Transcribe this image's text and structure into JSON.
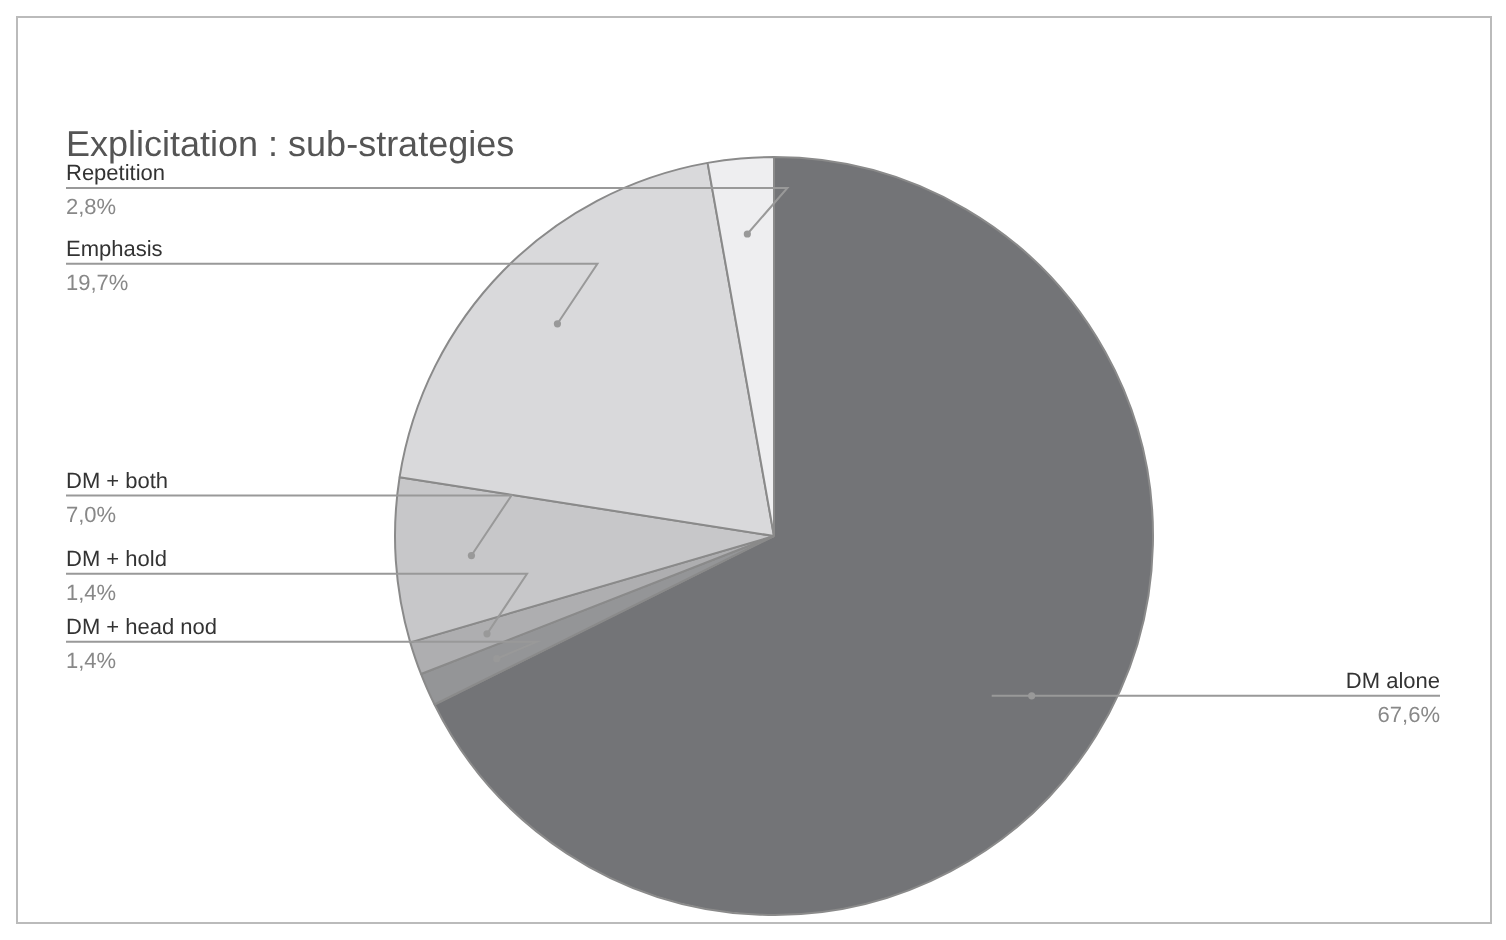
{
  "chart_data": {
    "type": "pie",
    "title": "Explicitation : sub-strategies",
    "categories": [
      "DM alone",
      "DM + head nod",
      "DM + hold",
      "DM + both",
      "Emphasis",
      "Repetition"
    ],
    "values": [
      67.6,
      1.4,
      1.4,
      7.0,
      19.7,
      2.8
    ],
    "value_labels": [
      "67,6%",
      "1,4%",
      "1,4%",
      "7,0%",
      "19,7%",
      "2,8%"
    ],
    "colors": [
      "#737477",
      "#949597",
      "#aeaeb0",
      "#c7c7c9",
      "#d9d9db",
      "#eeeef0"
    ],
    "legend": false
  }
}
